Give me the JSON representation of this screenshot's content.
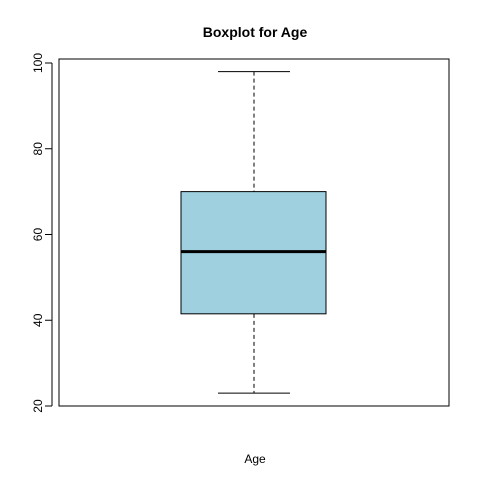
{
  "chart_data": {
    "type": "boxplot",
    "title": "Boxplot for  Age",
    "xlabel": "Age",
    "ylabel": "",
    "ylim": [
      20,
      100
    ],
    "yticks": [
      20,
      40,
      60,
      80,
      100
    ],
    "grid": false,
    "box": {
      "whisker_low": 23,
      "q1": 41.5,
      "median": 56,
      "q3": 70,
      "whisker_high": 98
    },
    "colors": {
      "box_fill": "#9fd0e0",
      "stroke": "#000000",
      "background": "#ffffff"
    }
  }
}
